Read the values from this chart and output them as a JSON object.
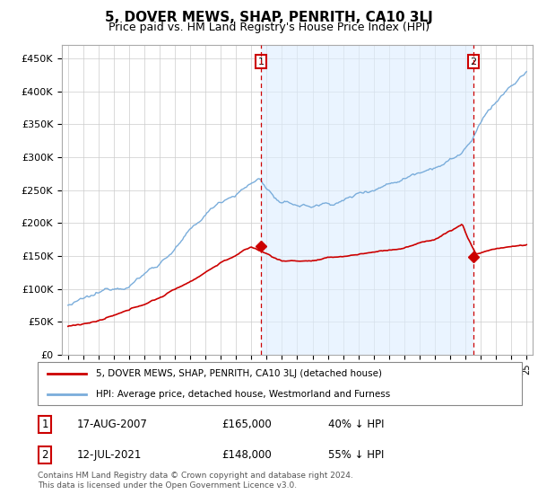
{
  "title": "5, DOVER MEWS, SHAP, PENRITH, CA10 3LJ",
  "subtitle": "Price paid vs. HM Land Registry's House Price Index (HPI)",
  "title_fontsize": 11,
  "subtitle_fontsize": 9,
  "hpi_color": "#7aaddb",
  "hpi_fill_color": "#ddeeff",
  "price_color": "#cc0000",
  "dashed_line_color": "#cc0000",
  "background_color": "#ffffff",
  "grid_color": "#cccccc",
  "ylim": [
    0,
    470000
  ],
  "yticks": [
    0,
    50000,
    100000,
    150000,
    200000,
    250000,
    300000,
    350000,
    400000,
    450000
  ],
  "ytick_labels": [
    "£0",
    "£50K",
    "£100K",
    "£150K",
    "£200K",
    "£250K",
    "£300K",
    "£350K",
    "£400K",
    "£450K"
  ],
  "sale1_date": 2007.63,
  "sale1_price": 165000,
  "sale2_date": 2021.53,
  "sale2_price": 148000,
  "footer_text": "Contains HM Land Registry data © Crown copyright and database right 2024.\nThis data is licensed under the Open Government Licence v3.0.",
  "legend_line1": "5, DOVER MEWS, SHAP, PENRITH, CA10 3LJ (detached house)",
  "legend_line2": "HPI: Average price, detached house, Westmorland and Furness",
  "table_row1": [
    "1",
    "17-AUG-2007",
    "£165,000",
    "40% ↓ HPI"
  ],
  "table_row2": [
    "2",
    "12-JUL-2021",
    "£148,000",
    "55% ↓ HPI"
  ]
}
